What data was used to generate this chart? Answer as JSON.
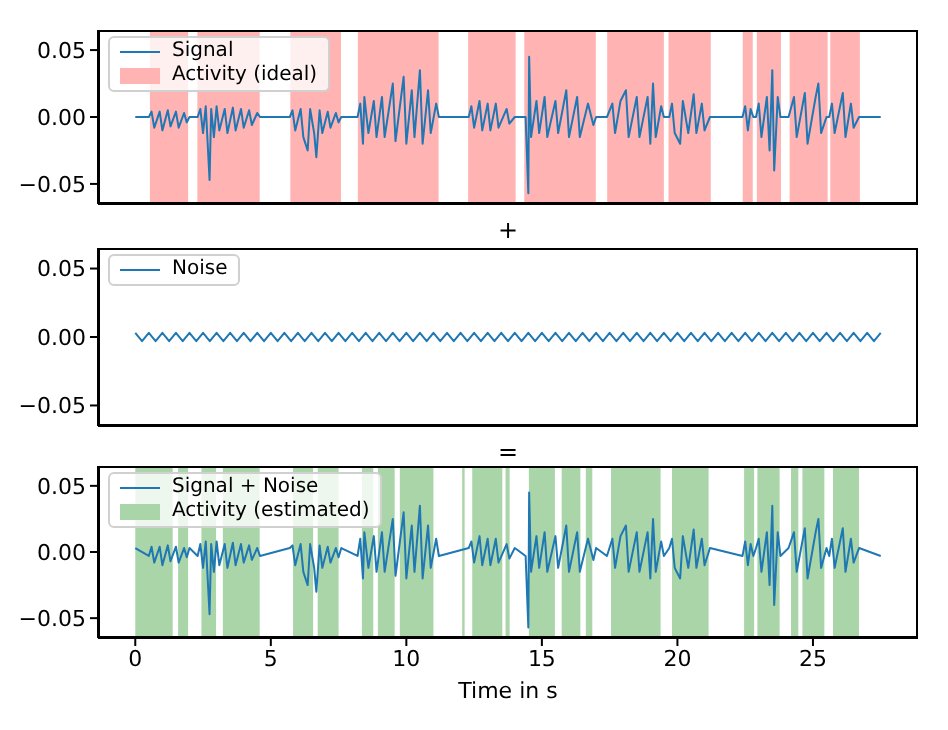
{
  "chart_data": [
    {
      "type": "line",
      "xlim": [
        -1.375,
        28.875
      ],
      "xticks": [
        0,
        5,
        10,
        15,
        20,
        25
      ],
      "ylim": [
        -0.065,
        0.065
      ],
      "yticks": [
        {
          "value": -0.05,
          "label": "−0.05"
        },
        {
          "value": 0,
          "label": "0.00"
        },
        {
          "value": 0.05,
          "label": "0.05"
        }
      ],
      "tick_labels": "y",
      "legend": "top left",
      "annotations": [
        "+"
      ],
      "series": [
        {
          "name": "Signal",
          "color": "#1f77b4",
          "x": [
            0,
            0.5,
            0.6,
            0.7,
            0.9,
            1.0,
            1.2,
            1.3,
            1.5,
            1.6,
            1.8,
            1.9,
            2.0,
            2.3,
            2.4,
            2.5,
            2.6,
            2.74,
            2.8,
            2.9,
            3.0,
            3.1,
            3.3,
            3.4,
            3.6,
            3.7,
            3.9,
            4.0,
            4.2,
            4.3,
            4.5,
            4.6,
            5.7,
            5.8,
            5.9,
            6.1,
            6.2,
            6.36,
            6.45,
            6.6,
            6.68,
            6.8,
            6.9,
            7.1,
            7.2,
            7.4,
            7.5,
            7.6,
            8.2,
            8.3,
            8.4,
            8.45,
            8.6,
            8.8,
            8.9,
            9.1,
            9.2,
            9.5,
            9.6,
            9.9,
            10.0,
            10.2,
            10.3,
            10.5,
            10.6,
            10.8,
            10.9,
            11.1,
            11.2,
            12.3,
            12.4,
            12.5,
            12.7,
            12.8,
            13.0,
            13.1,
            13.3,
            13.4,
            13.7,
            13.8,
            14.0,
            14.4,
            14.5,
            14.53,
            14.6,
            14.8,
            14.9,
            15.1,
            15.2,
            15.5,
            15.6,
            15.9,
            16.0,
            16.3,
            16.4,
            16.7,
            16.9,
            17.0,
            17.4,
            17.6,
            17.7,
            17.9,
            18.1,
            18.2,
            18.5,
            18.6,
            18.9,
            19.0,
            19.1,
            19.2,
            19.4,
            19.5,
            19.7,
            19.8,
            19.9,
            20.1,
            20.2,
            20.4,
            20.6,
            20.7,
            20.9,
            21.0,
            21.2,
            22.4,
            22.5,
            22.6,
            22.7,
            22.8,
            22.9,
            23.0,
            23.1,
            23.3,
            23.4,
            23.5,
            23.57,
            23.7,
            23.8,
            24.1,
            24.3,
            24.4,
            24.7,
            24.8,
            25.1,
            25.2,
            25.3,
            25.5,
            25.6,
            25.7,
            25.8,
            26.1,
            26.2,
            26.4,
            26.5,
            26.7,
            27.5
          ],
          "values": [
            0,
            0,
            0.004,
            -0.008,
            0.004,
            -0.01,
            0.005,
            -0.007,
            0.004,
            -0.008,
            0.003,
            -0.004,
            0,
            0,
            0.006,
            -0.012,
            0.008,
            -0.047,
            0.006,
            -0.015,
            0.008,
            -0.01,
            0.006,
            -0.012,
            0.007,
            -0.01,
            0.006,
            -0.008,
            0.005,
            -0.006,
            0.003,
            0,
            0,
            0.005,
            -0.01,
            0.006,
            -0.015,
            -0.025,
            0.006,
            -0.012,
            -0.03,
            0.005,
            -0.012,
            0.004,
            -0.008,
            0.003,
            -0.004,
            0,
            0,
            0.01,
            -0.02,
            0.015,
            -0.012,
            0.012,
            -0.015,
            0.015,
            -0.015,
            0.025,
            -0.018,
            0.03,
            -0.02,
            0.02,
            -0.015,
            0.035,
            -0.02,
            0.02,
            -0.012,
            0.01,
            0,
            0,
            0.008,
            -0.008,
            0.012,
            -0.01,
            0.01,
            -0.01,
            0.01,
            -0.008,
            0.006,
            -0.005,
            0,
            0,
            -0.057,
            0.045,
            -0.015,
            0.012,
            -0.012,
            0.015,
            -0.015,
            0.012,
            -0.012,
            0.02,
            -0.015,
            0.015,
            -0.015,
            0.01,
            -0.006,
            0,
            0,
            0.01,
            -0.012,
            0.012,
            0.02,
            -0.015,
            0.015,
            -0.015,
            0.015,
            -0.02,
            0.025,
            -0.015,
            0.008,
            0,
            0,
            0.01,
            -0.012,
            -0.02,
            0.012,
            -0.012,
            0.017,
            -0.012,
            0.01,
            -0.01,
            0,
            0,
            0.008,
            -0.01,
            0.006,
            0,
            0,
            0.01,
            -0.015,
            0.015,
            -0.025,
            0.035,
            -0.04,
            0.015,
            0,
            0,
            0.015,
            -0.015,
            0.018,
            -0.02,
            0.015,
            0.025,
            -0.012,
            0,
            0,
            0.01,
            -0.012,
            0.018,
            -0.015,
            0.01,
            -0.008,
            0,
            0
          ]
        }
      ],
      "bands": [
        {
          "axis": "x",
          "from": 0.54,
          "to": 1.95,
          "label": "Activity (ideal)",
          "color": "#ffb3b3"
        },
        {
          "axis": "x",
          "from": 2.29,
          "to": 4.59,
          "color": "#ffb3b3"
        },
        {
          "axis": "x",
          "from": 5.72,
          "to": 7.59,
          "color": "#ffb3b3"
        },
        {
          "axis": "x",
          "from": 8.21,
          "to": 11.19,
          "color": "#ffb3b3"
        },
        {
          "axis": "x",
          "from": 12.28,
          "to": 14.03,
          "color": "#ffb3b3"
        },
        {
          "axis": "x",
          "from": 14.35,
          "to": 16.99,
          "color": "#ffb3b3"
        },
        {
          "axis": "x",
          "from": 17.41,
          "to": 19.5,
          "color": "#ffb3b3"
        },
        {
          "axis": "x",
          "from": 19.67,
          "to": 21.23,
          "color": "#ffb3b3"
        },
        {
          "axis": "x",
          "from": 22.41,
          "to": 22.78,
          "color": "#ffb3b3"
        },
        {
          "axis": "x",
          "from": 22.93,
          "to": 23.82,
          "color": "#ffb3b3"
        },
        {
          "axis": "x",
          "from": 24.14,
          "to": 25.54,
          "color": "#ffb3b3"
        },
        {
          "axis": "x",
          "from": 25.64,
          "to": 26.73,
          "color": "#ffb3b3"
        }
      ]
    },
    {
      "type": "line",
      "xlim": [
        -1.375,
        28.875
      ],
      "xticks": [
        0,
        5,
        10,
        15,
        20,
        25
      ],
      "ylim": [
        -0.065,
        0.065
      ],
      "yticks": [
        {
          "value": -0.05,
          "label": "−0.05"
        },
        {
          "value": 0,
          "label": "0.00"
        },
        {
          "value": 0.05,
          "label": "0.05"
        }
      ],
      "tick_labels": "y",
      "legend": "top left",
      "annotations": [
        "="
      ],
      "series": [
        {
          "name": "Noise",
          "color": "#1f77b4",
          "x": [
            0,
            0.25,
            0.5,
            0.75,
            1,
            1.25,
            1.5,
            1.75,
            2,
            2.25,
            2.5,
            2.75,
            3,
            3.25,
            3.5,
            3.75,
            4,
            4.25,
            4.5,
            4.75,
            5,
            5.25,
            5.5,
            5.75,
            6,
            6.25,
            6.5,
            6.75,
            7,
            7.25,
            7.5,
            7.75,
            8,
            8.25,
            8.5,
            8.75,
            9,
            9.25,
            9.5,
            9.75,
            10,
            10.25,
            10.5,
            10.75,
            11,
            11.25,
            11.5,
            11.75,
            12,
            12.25,
            12.5,
            12.75,
            13,
            13.25,
            13.5,
            13.75,
            14,
            14.25,
            14.5,
            14.75,
            15,
            15.25,
            15.5,
            15.75,
            16,
            16.25,
            16.5,
            16.75,
            17,
            17.25,
            17.5,
            17.75,
            18,
            18.25,
            18.5,
            18.75,
            19,
            19.25,
            19.5,
            19.75,
            20,
            20.25,
            20.5,
            20.75,
            21,
            21.25,
            21.5,
            21.75,
            22,
            22.25,
            22.5,
            22.75,
            23,
            23.25,
            23.5,
            23.75,
            24,
            24.25,
            24.5,
            24.75,
            25,
            25.25,
            25.5,
            25.75,
            26,
            26.25,
            26.5,
            26.75,
            27,
            27.25,
            27.5
          ],
          "values": [
            0.003,
            -0.003,
            0.003,
            -0.003,
            0.003,
            -0.003,
            0.003,
            -0.003,
            0.003,
            -0.003,
            0.003,
            -0.003,
            0.003,
            -0.003,
            0.003,
            -0.003,
            0.003,
            -0.003,
            0.003,
            -0.003,
            0.003,
            -0.003,
            0.003,
            -0.003,
            0.003,
            -0.003,
            0.003,
            -0.003,
            0.003,
            -0.003,
            0.003,
            -0.003,
            0.003,
            -0.003,
            0.003,
            -0.003,
            0.003,
            -0.003,
            0.003,
            -0.003,
            0.003,
            -0.003,
            0.003,
            -0.003,
            0.003,
            -0.003,
            0.003,
            -0.003,
            0.003,
            -0.003,
            0.003,
            -0.003,
            0.003,
            -0.003,
            0.003,
            -0.003,
            0.003,
            -0.003,
            0.003,
            -0.003,
            0.003,
            -0.003,
            0.003,
            -0.003,
            0.003,
            -0.003,
            0.003,
            -0.003,
            0.003,
            -0.003,
            0.003,
            -0.003,
            0.003,
            -0.003,
            0.003,
            -0.003,
            0.003,
            -0.003,
            0.003,
            -0.003,
            0.003,
            -0.003,
            0.003,
            -0.003,
            0.003,
            -0.003,
            0.003,
            -0.003,
            0.003,
            -0.003,
            0.003,
            -0.003,
            0.003,
            -0.003,
            0.003,
            -0.003,
            0.003,
            -0.003,
            0.003,
            -0.003,
            0.003,
            -0.003,
            0.003,
            -0.003,
            0.003,
            -0.003,
            0.003,
            -0.003,
            0.003,
            -0.003,
            0.003
          ]
        }
      ]
    },
    {
      "type": "line",
      "xlim": [
        -1.375,
        28.875
      ],
      "xticks": [
        0,
        5,
        10,
        15,
        20,
        25
      ],
      "ylim": [
        -0.065,
        0.065
      ],
      "yticks": [
        {
          "value": -0.05,
          "label": "−0.05"
        },
        {
          "value": 0,
          "label": "0.00"
        },
        {
          "value": 0.05,
          "label": "0.05"
        }
      ],
      "xlabel": "Time in s",
      "legend": "top left",
      "series": [
        {
          "name": "Signal + Noise",
          "color": "#1f77b4",
          "x": [
            0,
            0.5,
            0.6,
            0.7,
            0.9,
            1.0,
            1.2,
            1.3,
            1.5,
            1.6,
            1.8,
            1.9,
            2.0,
            2.3,
            2.4,
            2.5,
            2.6,
            2.74,
            2.8,
            2.9,
            3.0,
            3.1,
            3.3,
            3.4,
            3.6,
            3.7,
            3.9,
            4.0,
            4.2,
            4.3,
            4.5,
            4.6,
            5.7,
            5.8,
            5.9,
            6.1,
            6.2,
            6.36,
            6.45,
            6.6,
            6.68,
            6.8,
            6.9,
            7.1,
            7.2,
            7.4,
            7.5,
            7.6,
            8.2,
            8.3,
            8.4,
            8.45,
            8.6,
            8.8,
            8.9,
            9.1,
            9.2,
            9.5,
            9.6,
            9.9,
            10.0,
            10.2,
            10.3,
            10.5,
            10.6,
            10.8,
            10.9,
            11.1,
            11.2,
            12.3,
            12.4,
            12.5,
            12.7,
            12.8,
            13.0,
            13.1,
            13.3,
            13.4,
            13.7,
            13.8,
            14.0,
            14.4,
            14.5,
            14.53,
            14.6,
            14.8,
            14.9,
            15.1,
            15.2,
            15.5,
            15.6,
            15.9,
            16.0,
            16.3,
            16.4,
            16.7,
            16.9,
            17.0,
            17.4,
            17.6,
            17.7,
            17.9,
            18.1,
            18.2,
            18.5,
            18.6,
            18.9,
            19.0,
            19.1,
            19.2,
            19.4,
            19.5,
            19.7,
            19.8,
            19.9,
            20.1,
            20.2,
            20.4,
            20.6,
            20.7,
            20.9,
            21.0,
            21.2,
            22.4,
            22.5,
            22.6,
            22.7,
            22.8,
            22.9,
            23.0,
            23.1,
            23.3,
            23.4,
            23.5,
            23.57,
            23.7,
            23.8,
            24.1,
            24.3,
            24.4,
            24.7,
            24.8,
            25.1,
            25.2,
            25.3,
            25.5,
            25.6,
            25.7,
            25.8,
            26.1,
            26.2,
            26.4,
            26.5,
            26.7,
            27.5
          ],
          "values": [
            0.003,
            -0.003,
            0.004,
            -0.008,
            0.004,
            -0.01,
            0.005,
            -0.007,
            0.004,
            -0.008,
            0.003,
            -0.004,
            0.003,
            -0.003,
            0.006,
            -0.012,
            0.008,
            -0.047,
            0.006,
            -0.015,
            0.008,
            -0.01,
            0.006,
            -0.012,
            0.007,
            -0.01,
            0.006,
            -0.008,
            0.005,
            -0.006,
            0.003,
            -0.003,
            0.003,
            0.005,
            -0.01,
            0.006,
            -0.015,
            -0.025,
            0.006,
            -0.012,
            -0.03,
            0.005,
            -0.012,
            0.004,
            -0.008,
            0.003,
            -0.004,
            0.003,
            -0.003,
            0.01,
            -0.02,
            0.015,
            -0.012,
            0.012,
            -0.015,
            0.015,
            -0.015,
            0.025,
            -0.018,
            0.03,
            -0.02,
            0.02,
            -0.015,
            0.035,
            -0.02,
            0.02,
            -0.012,
            0.01,
            -0.003,
            0.003,
            0.008,
            -0.008,
            0.012,
            -0.01,
            0.01,
            -0.01,
            0.01,
            -0.008,
            0.006,
            -0.005,
            0.003,
            -0.003,
            -0.057,
            0.045,
            -0.015,
            0.012,
            -0.012,
            0.015,
            -0.015,
            0.012,
            -0.012,
            0.02,
            -0.015,
            0.015,
            -0.015,
            0.01,
            -0.006,
            0.003,
            -0.003,
            0.01,
            -0.012,
            0.012,
            0.02,
            -0.015,
            0.015,
            -0.015,
            0.015,
            -0.02,
            0.025,
            -0.015,
            0.008,
            -0.003,
            0.003,
            0.01,
            -0.012,
            -0.02,
            0.012,
            -0.012,
            0.017,
            -0.012,
            0.01,
            -0.01,
            0.003,
            -0.003,
            0.008,
            -0.01,
            0.006,
            -0.003,
            0.003,
            0.01,
            -0.015,
            0.015,
            -0.025,
            0.035,
            -0.04,
            0.015,
            -0.003,
            0.003,
            0.015,
            -0.015,
            0.018,
            -0.02,
            0.015,
            0.025,
            -0.012,
            0.003,
            -0.003,
            0.01,
            -0.012,
            0.018,
            -0.015,
            0.01,
            -0.008,
            0.003,
            -0.003
          ]
        }
      ],
      "bands": [
        {
          "axis": "x",
          "from": 0,
          "to": 1.38,
          "label": "Activity (estimated)",
          "color": "#a9d5a9"
        },
        {
          "axis": "x",
          "from": 1.58,
          "to": 1.95,
          "color": "#a9d5a9"
        },
        {
          "axis": "x",
          "from": 2.44,
          "to": 2.98,
          "color": "#a9d5a9"
        },
        {
          "axis": "x",
          "from": 3.23,
          "to": 4.59,
          "color": "#a9d5a9"
        },
        {
          "axis": "x",
          "from": 5.82,
          "to": 6.56,
          "color": "#a9d5a9"
        },
        {
          "axis": "x",
          "from": 6.73,
          "to": 7.5,
          "color": "#a9d5a9"
        },
        {
          "axis": "x",
          "from": 8.36,
          "to": 8.78,
          "color": "#a9d5a9"
        },
        {
          "axis": "x",
          "from": 8.95,
          "to": 9.57,
          "color": "#a9d5a9"
        },
        {
          "axis": "x",
          "from": 9.76,
          "to": 11.0,
          "color": "#a9d5a9"
        },
        {
          "axis": "x",
          "from": 12.06,
          "to": 12.15,
          "color": "#a9d5a9"
        },
        {
          "axis": "x",
          "from": 12.43,
          "to": 13.54,
          "color": "#a9d5a9"
        },
        {
          "axis": "x",
          "from": 13.66,
          "to": 13.81,
          "color": "#a9d5a9"
        },
        {
          "axis": "x",
          "from": 14.52,
          "to": 15.48,
          "color": "#a9d5a9"
        },
        {
          "axis": "x",
          "from": 15.73,
          "to": 16.42,
          "color": "#a9d5a9"
        },
        {
          "axis": "x",
          "from": 16.62,
          "to": 16.86,
          "color": "#a9d5a9"
        },
        {
          "axis": "x",
          "from": 17.55,
          "to": 19.38,
          "color": "#a9d5a9"
        },
        {
          "axis": "x",
          "from": 19.8,
          "to": 21.15,
          "color": "#a9d5a9"
        },
        {
          "axis": "x",
          "from": 22.46,
          "to": 22.83,
          "color": "#a9d5a9"
        },
        {
          "axis": "x",
          "from": 22.95,
          "to": 23.77,
          "color": "#a9d5a9"
        },
        {
          "axis": "x",
          "from": 24.19,
          "to": 24.46,
          "color": "#a9d5a9"
        },
        {
          "axis": "x",
          "from": 24.61,
          "to": 25.42,
          "color": "#a9d5a9"
        },
        {
          "axis": "x",
          "from": 25.74,
          "to": 26.7,
          "color": "#a9d5a9"
        }
      ]
    }
  ]
}
